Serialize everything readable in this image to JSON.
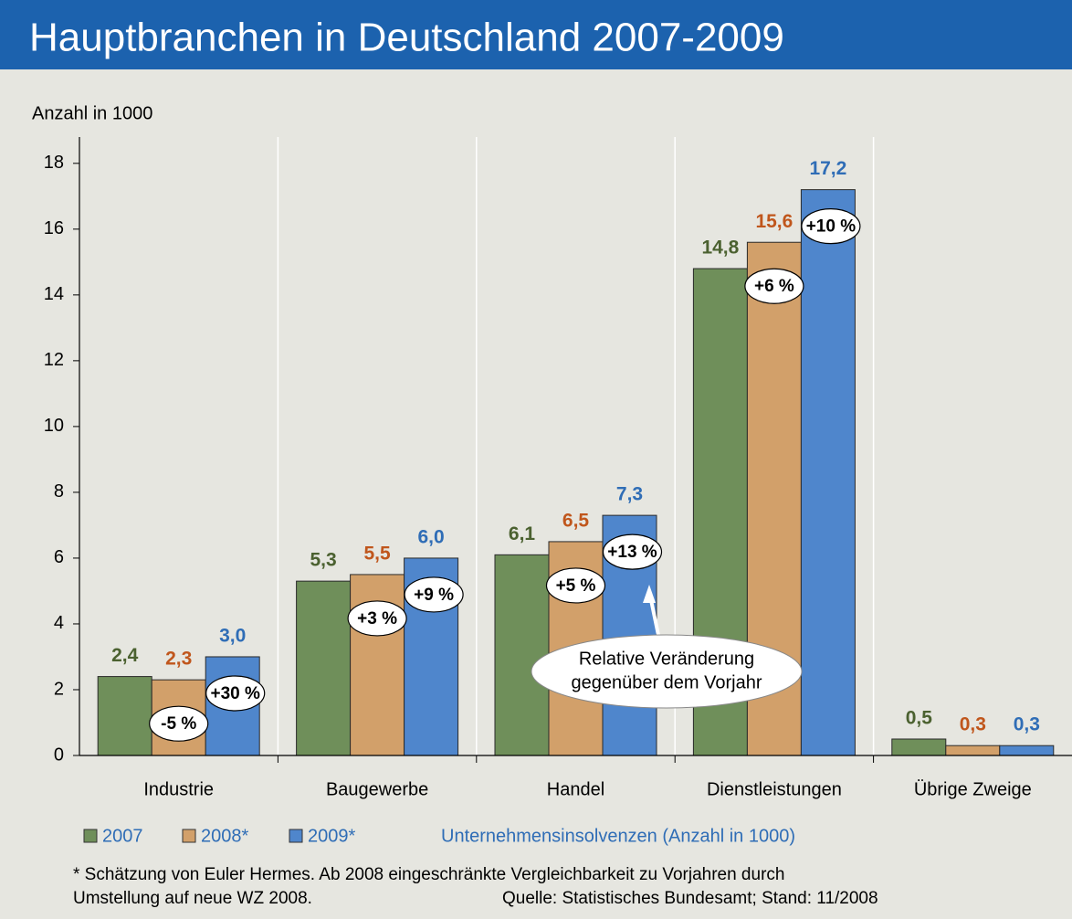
{
  "chart_data": {
    "type": "bar",
    "title": "Hauptbranchen in Deutschland 2007-2009",
    "y_axis_label": "Anzahl in 1000",
    "subtitle": "Unternehmensinsolvenzen (Anzahl in 1000)",
    "categories": [
      "Industrie",
      "Baugewerbe",
      "Handel",
      "Dienstleistungen",
      "Übrige Zweige"
    ],
    "series": [
      {
        "name": "2007",
        "color": "#6f8f5a",
        "label_color": "#4b6130",
        "values": [
          2.4,
          5.3,
          6.1,
          14.8,
          0.5
        ],
        "value_labels": [
          "2,4",
          "5,3",
          "6,1",
          "14,8",
          "0,5"
        ]
      },
      {
        "name": "2008*",
        "color": "#d2a06a",
        "label_color": "#c0561c",
        "values": [
          2.3,
          5.5,
          6.5,
          15.6,
          0.3
        ],
        "value_labels": [
          "2,3",
          "5,5",
          "6,5",
          "15,6",
          "0,3"
        ],
        "change_labels": [
          "-5 %",
          "+3 %",
          "+5 %",
          "+6 %",
          null
        ]
      },
      {
        "name": "2009*",
        "color": "#4f86cc",
        "label_color": "#2f6db6",
        "values": [
          3.0,
          6.0,
          7.3,
          17.2,
          0.3
        ],
        "value_labels": [
          "3,0",
          "6,0",
          "7,3",
          "17,2",
          "0,3"
        ],
        "change_labels": [
          "+30 %",
          "+9 %",
          "+13 %",
          "+10 %",
          null
        ]
      }
    ],
    "annotation": [
      "Relative Veränderung",
      "gegenüber dem Vorjahr"
    ],
    "ylim": [
      0,
      18.8
    ],
    "yticks": [
      0,
      2,
      4,
      6,
      8,
      10,
      12,
      14,
      16,
      18
    ],
    "footnotes": [
      "* Schätzung von Euler Hermes. Ab 2008 eingeschränkte Vergleichbarkeit zu Vorjahren durch",
      "Umstellung auf neue WZ 2008."
    ],
    "source": "Quelle: Statistisches Bundesamt; Stand: 11/2008"
  }
}
